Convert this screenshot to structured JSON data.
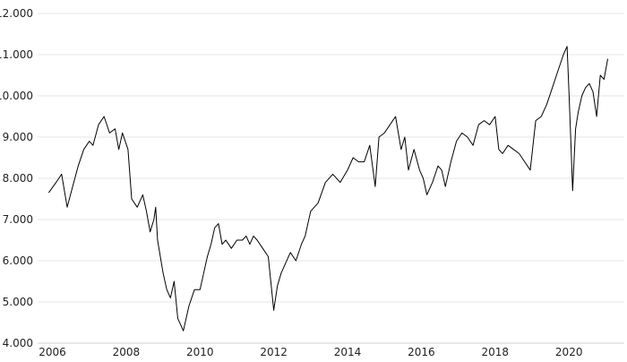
{
  "chart_data": {
    "type": "line",
    "title": "",
    "xlabel": "",
    "ylabel": "",
    "x_range": [
      2005.6,
      2021.5
    ],
    "ylim": [
      4000,
      12000
    ],
    "y_ticks": [
      4000,
      5000,
      6000,
      7000,
      8000,
      9000,
      10000,
      11000,
      12000
    ],
    "y_tick_labels": [
      "4.000",
      "5.000",
      "6.000",
      "7.000",
      "8.000",
      "9.000",
      "10.000",
      "11.000",
      "12.000"
    ],
    "x_ticks": [
      2006,
      2008,
      2010,
      2012,
      2014,
      2016,
      2018,
      2020
    ],
    "x_tick_labels": [
      "2006",
      "2008",
      "2010",
      "2012",
      "2014",
      "2016",
      "2018",
      "2020"
    ],
    "grid": "horizontal",
    "legend": "none",
    "line_color": "#000000",
    "series": [
      {
        "x": [
          2005.9,
          2006.1,
          2006.25,
          2006.4,
          2006.55,
          2006.7,
          2006.85,
          2007.0,
          2007.1,
          2007.25,
          2007.4,
          2007.55,
          2007.7,
          2007.8,
          2007.9,
          2008.05,
          2008.15,
          2008.3,
          2008.45,
          2008.55,
          2008.65,
          2008.75,
          2008.8,
          2008.85,
          2009.0,
          2009.1,
          2009.2,
          2009.3,
          2009.4,
          2009.55,
          2009.7,
          2009.85,
          2010.0,
          2010.1,
          2010.2,
          2010.3,
          2010.4,
          2010.5,
          2010.6,
          2010.7,
          2010.85,
          2011.0,
          2011.15,
          2011.25,
          2011.35,
          2011.45,
          2011.55,
          2011.7,
          2011.85,
          2012.0,
          2012.1,
          2012.2,
          2012.3,
          2012.45,
          2012.6,
          2012.75,
          2012.85,
          2013.0,
          2013.2,
          2013.4,
          2013.6,
          2013.8,
          2014.0,
          2014.15,
          2014.3,
          2014.45,
          2014.6,
          2014.75,
          2014.85,
          2015.0,
          2015.15,
          2015.3,
          2015.45,
          2015.55,
          2015.65,
          2015.8,
          2015.95,
          2016.05,
          2016.15,
          2016.3,
          2016.45,
          2016.55,
          2016.65,
          2016.8,
          2016.95,
          2017.1,
          2017.25,
          2017.4,
          2017.55,
          2017.7,
          2017.85,
          2018.0,
          2018.1,
          2018.2,
          2018.35,
          2018.5,
          2018.65,
          2018.8,
          2018.95,
          2019.1,
          2019.25,
          2019.4,
          2019.55,
          2019.7,
          2019.85,
          2019.95,
          2020.0,
          2020.05,
          2020.1,
          2020.13,
          2020.18,
          2020.25,
          2020.35,
          2020.45,
          2020.55,
          2020.65,
          2020.75,
          2020.85,
          2020.95,
          2021.05
        ],
        "y": [
          7650,
          7900,
          8100,
          7300,
          7800,
          8300,
          8700,
          8900,
          8800,
          9300,
          9500,
          9100,
          9200,
          8700,
          9100,
          8700,
          7500,
          7300,
          7600,
          7200,
          6700,
          7000,
          7300,
          6500,
          5700,
          5300,
          5100,
          5500,
          4600,
          4300,
          4900,
          5300,
          5300,
          5700,
          6100,
          6400,
          6800,
          6900,
          6400,
          6500,
          6300,
          6500,
          6500,
          6600,
          6400,
          6600,
          6500,
          6300,
          6100,
          4800,
          5400,
          5700,
          5900,
          6200,
          6000,
          6400,
          6600,
          7200,
          7400,
          7900,
          8100,
          7900,
          8200,
          8500,
          8400,
          8400,
          8800,
          7800,
          9000,
          9100,
          9300,
          9500,
          8700,
          9000,
          8200,
          8700,
          8200,
          8000,
          7600,
          7900,
          8300,
          8200,
          7800,
          8400,
          8900,
          9100,
          9000,
          8800,
          9300,
          9400,
          9300,
          9500,
          8700,
          8600,
          8800,
          8700,
          8600,
          8400,
          8200,
          9400,
          9500,
          9800,
          10200,
          10600,
          11000,
          11200,
          10100,
          8900,
          7700,
          8300,
          9200,
          9600,
          10000,
          10200,
          10300,
          10100,
          9500,
          10500,
          10400,
          10900
        ]
      }
    ]
  }
}
